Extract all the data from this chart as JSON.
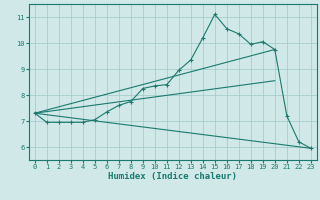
{
  "bg_color": "#d0e8e8",
  "line_color": "#1a7a6e",
  "grid_color": "#a0c8c8",
  "xlabel": "Humidex (Indice chaleur)",
  "xlim": [
    -0.5,
    23.5
  ],
  "ylim": [
    5.5,
    11.5
  ],
  "yticks": [
    6,
    7,
    8,
    9,
    10,
    11
  ],
  "xticks": [
    0,
    1,
    2,
    3,
    4,
    5,
    6,
    7,
    8,
    9,
    10,
    11,
    12,
    13,
    14,
    15,
    16,
    17,
    18,
    19,
    20,
    21,
    22,
    23
  ],
  "series_with_markers": [
    [
      0,
      7.3
    ],
    [
      1,
      6.95
    ],
    [
      2,
      6.95
    ],
    [
      3,
      6.95
    ],
    [
      4,
      6.95
    ],
    [
      5,
      7.05
    ],
    [
      6,
      7.35
    ],
    [
      7,
      7.6
    ],
    [
      8,
      7.75
    ],
    [
      9,
      8.25
    ],
    [
      10,
      8.35
    ],
    [
      11,
      8.4
    ],
    [
      12,
      8.95
    ],
    [
      13,
      9.35
    ],
    [
      14,
      10.2
    ],
    [
      15,
      11.1
    ],
    [
      16,
      10.55
    ],
    [
      17,
      10.35
    ],
    [
      18,
      9.95
    ],
    [
      19,
      10.05
    ],
    [
      20,
      9.75
    ],
    [
      21,
      7.2
    ],
    [
      22,
      6.2
    ],
    [
      23,
      5.95
    ]
  ],
  "line_upper": [
    [
      0,
      7.3
    ],
    [
      20,
      9.75
    ]
  ],
  "line_mid": [
    [
      0,
      7.3
    ],
    [
      20,
      8.55
    ]
  ],
  "line_lower": [
    [
      0,
      7.3
    ],
    [
      23,
      5.95
    ]
  ]
}
